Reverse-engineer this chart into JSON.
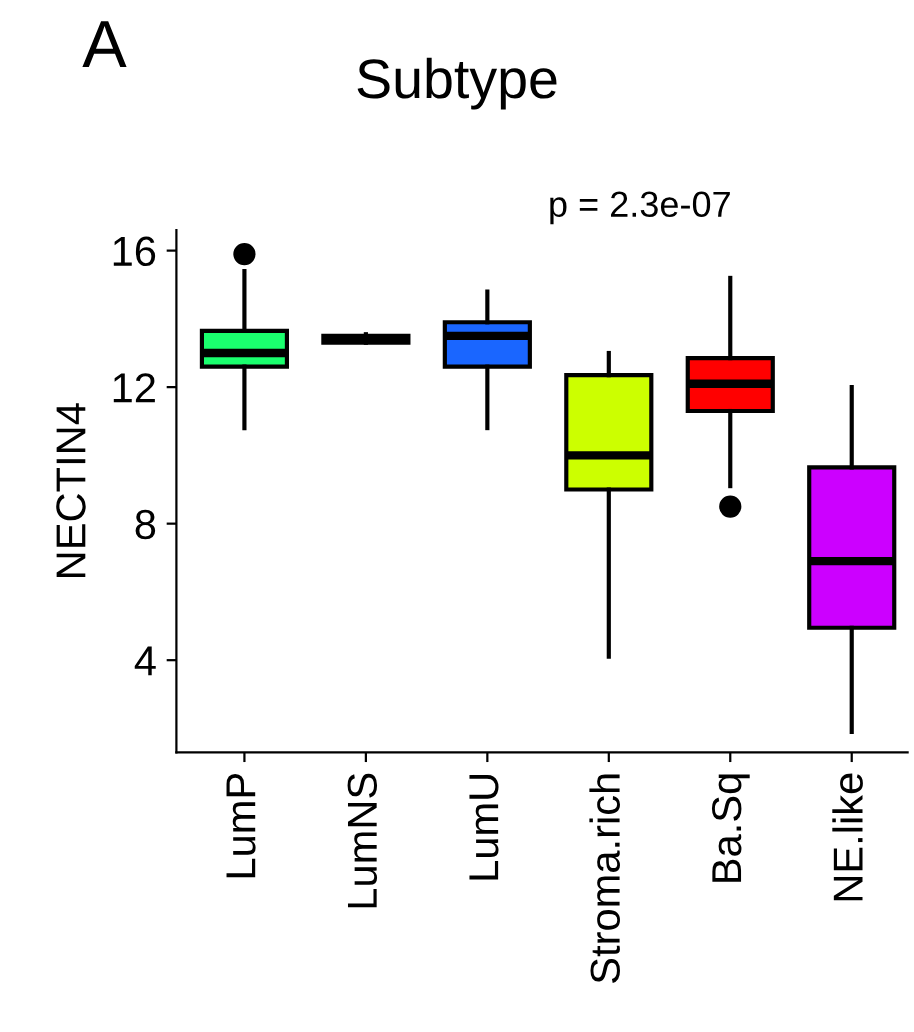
{
  "chart_data": {
    "type": "box",
    "title": "Subtype",
    "ylabel": "NECTIN4",
    "annotations": [
      "A",
      "p = 2.3e-07"
    ],
    "categories": [
      "LumP",
      "LumNS",
      "LumU",
      "Stroma.rich",
      "Ba.Sq",
      "NE.like"
    ],
    "colors": [
      "#1aff6e",
      "#000000",
      "#1a66ff",
      "#ccff00",
      "#ff0000",
      "#cc00ff"
    ],
    "boxes": [
      {
        "low": 10.8,
        "q1": 12.6,
        "median": 13.0,
        "q3": 13.65,
        "high": 15.4,
        "outliers": [
          15.9
        ]
      },
      {
        "low": 13.3,
        "q1": 13.3,
        "median": 13.4,
        "q3": 13.5,
        "high": 13.55
      },
      {
        "low": 10.8,
        "q1": 12.6,
        "median": 13.5,
        "q3": 13.9,
        "high": 14.8
      },
      {
        "low": 4.1,
        "q1": 9.0,
        "median": 10.0,
        "q3": 12.35,
        "high": 13.0
      },
      {
        "low": 9.1,
        "q1": 11.3,
        "median": 12.1,
        "q3": 12.85,
        "high": 15.2,
        "outliers": [
          8.5
        ]
      },
      {
        "low": 1.9,
        "q1": 4.95,
        "median": 6.9,
        "q3": 9.65,
        "high": 12.0
      }
    ],
    "ylim": [
      1.3,
      16.6
    ],
    "yticks": [
      4,
      8,
      12,
      16
    ],
    "grid": false
  }
}
